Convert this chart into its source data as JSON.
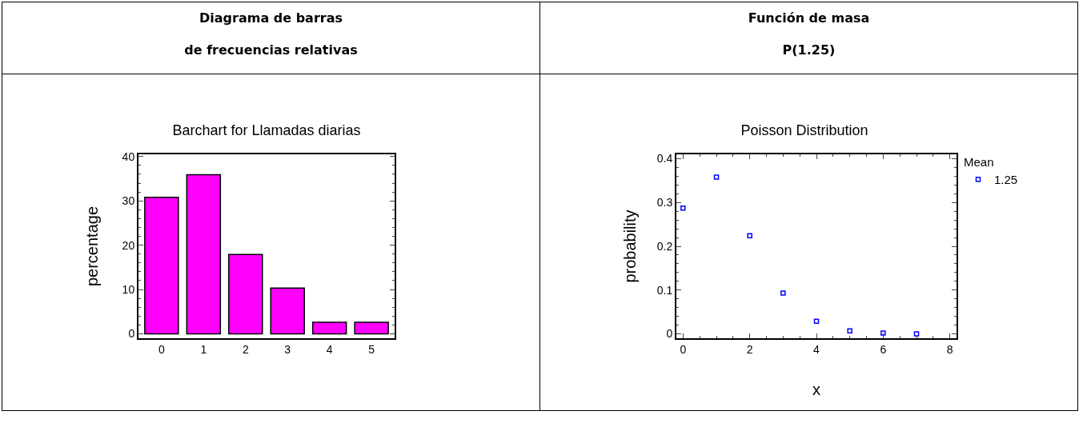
{
  "chart_data": [
    {
      "type": "bar",
      "title": "Diagrama de barras\nde frecuencias relativas",
      "subtitle": "Barchart for Llamadas diarias",
      "ylabel": "percentage",
      "categories": [
        "0",
        "1",
        "2",
        "3",
        "4",
        "5"
      ],
      "values": [
        30.8,
        35.9,
        17.9,
        10.3,
        2.6,
        2.6
      ],
      "color": "#ff00ff",
      "ylim": [
        -1,
        40.5
      ],
      "yticks": [
        0,
        10,
        20,
        30,
        40
      ],
      "grid": false,
      "legend": false
    },
    {
      "type": "scatter",
      "title": "Función de masa\nP(1.25)",
      "subtitle": "Poisson Distribution",
      "xlabel": "x",
      "ylabel": "probability",
      "legend_title": "Mean",
      "x": [
        0,
        1,
        2,
        3,
        4,
        5,
        6,
        7
      ],
      "series": [
        {
          "name": "1.25",
          "color": "#0000ff",
          "values": [
            0.287,
            0.358,
            0.224,
            0.093,
            0.029,
            0.007,
            0.002,
            0
          ]
        }
      ],
      "xlim": [
        -0.2,
        8.2
      ],
      "xticks": [
        0,
        2,
        4,
        6,
        8
      ],
      "ylim": [
        -0.01,
        0.41
      ],
      "yticks": [
        0,
        0.1,
        0.2,
        0.3,
        0.4
      ],
      "marker": "square",
      "grid": false,
      "legend": "top right"
    }
  ]
}
